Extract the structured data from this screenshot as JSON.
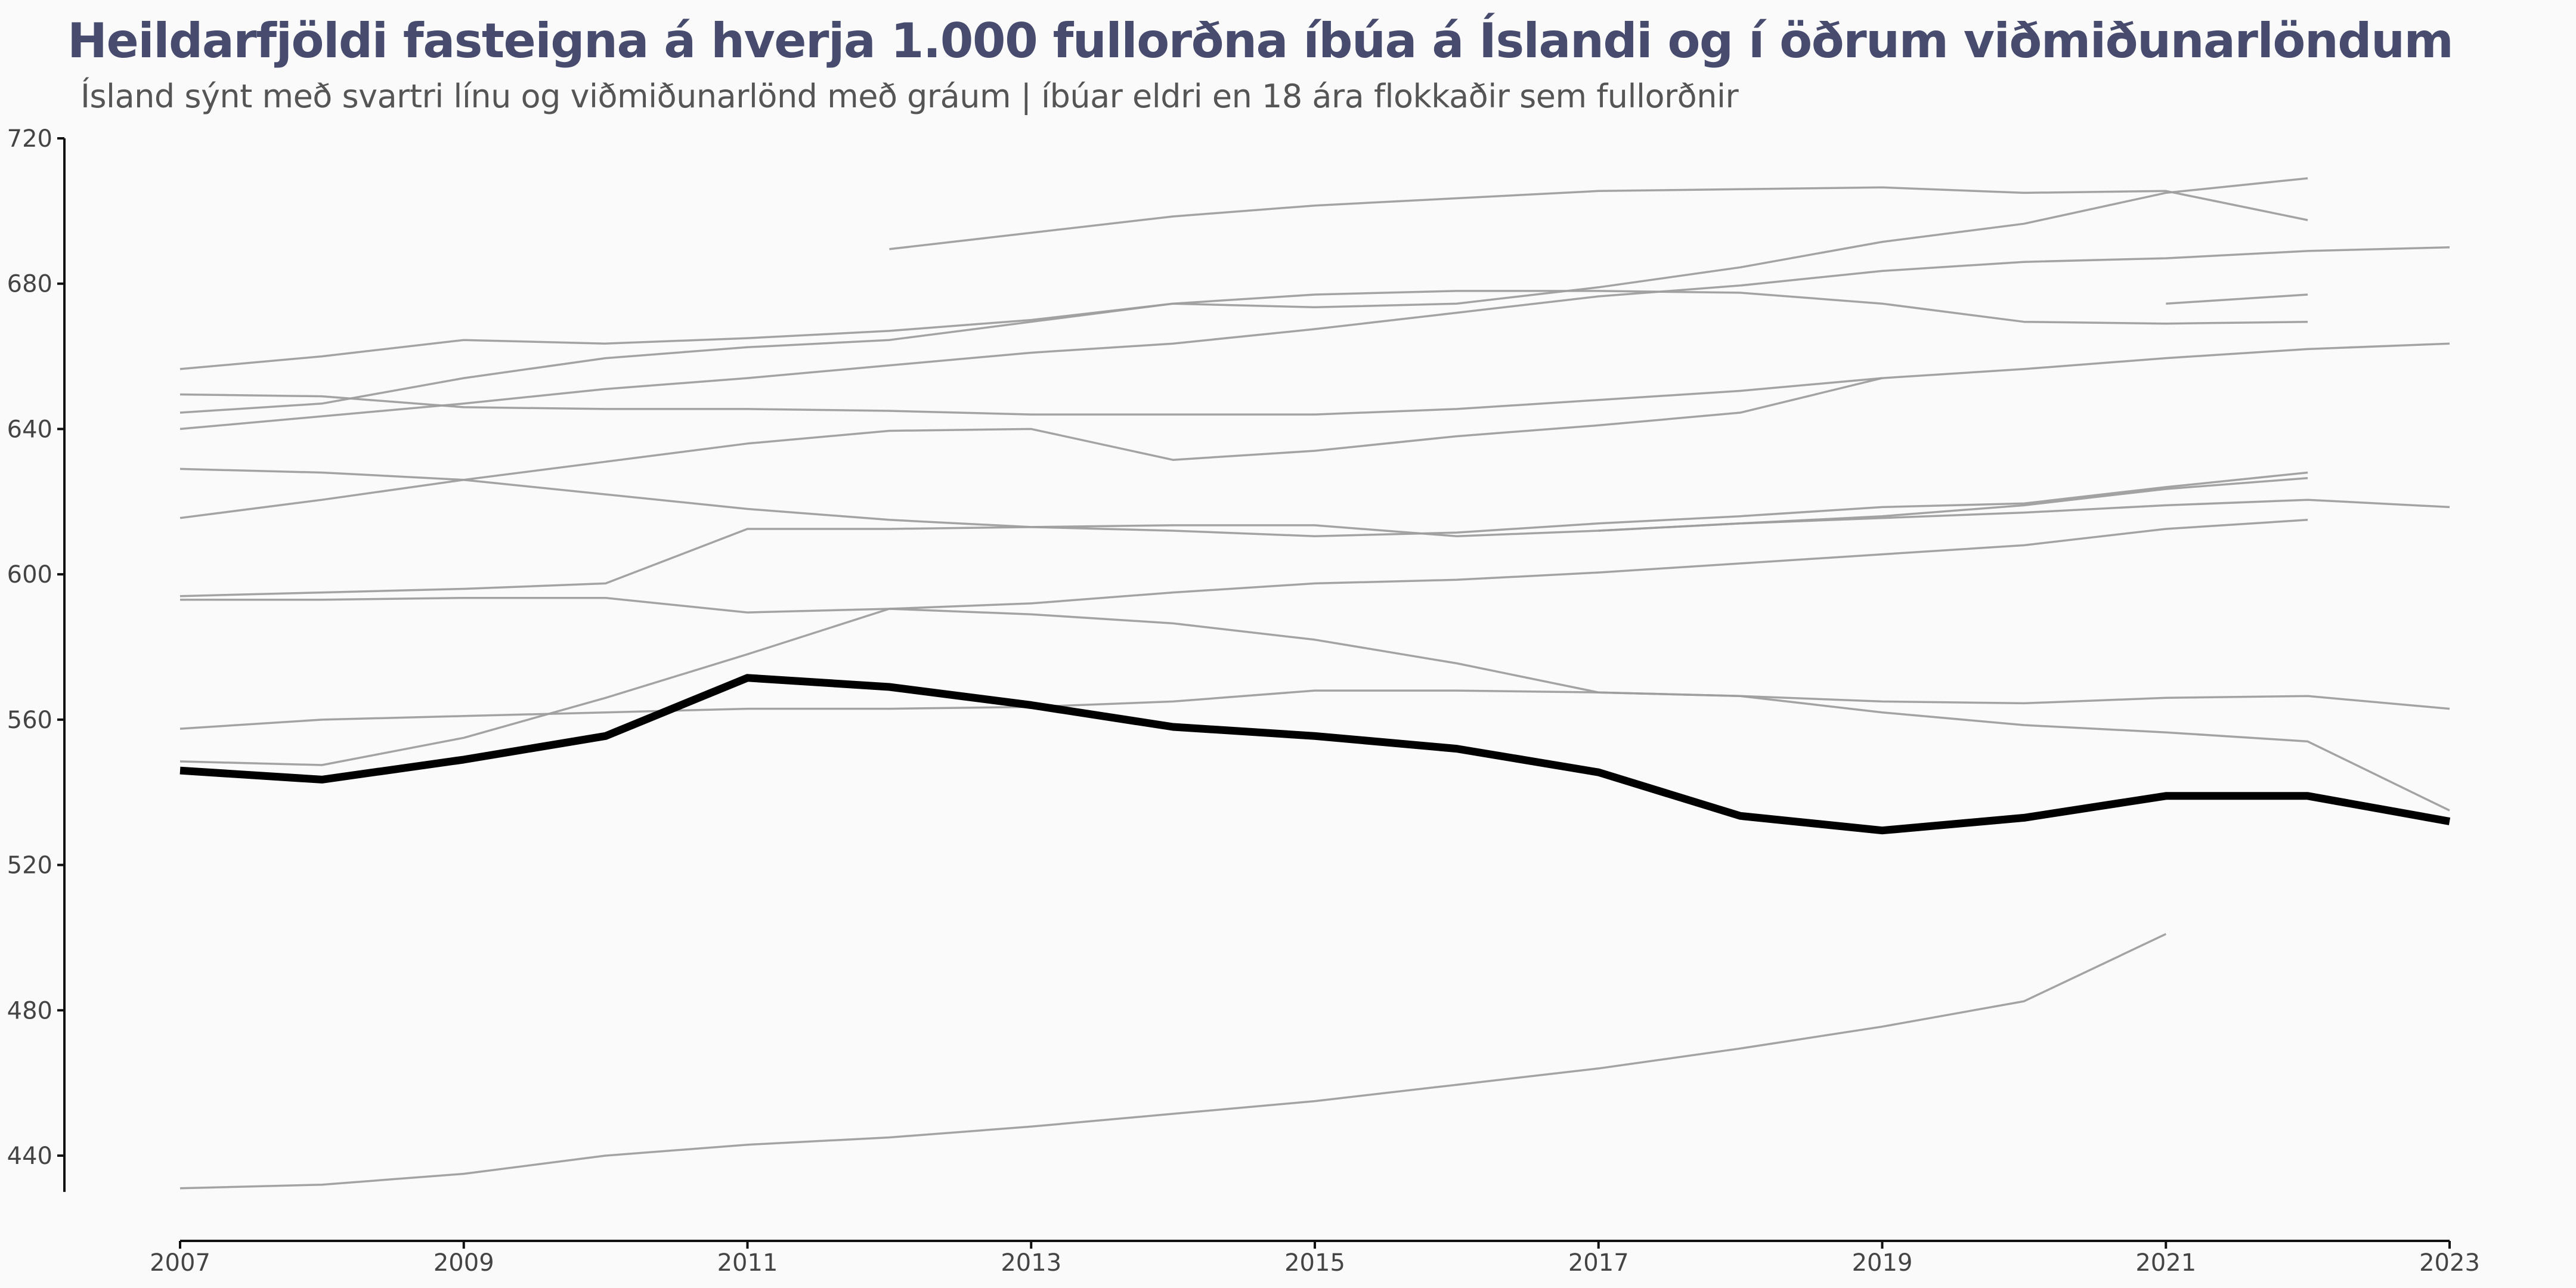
{
  "chart_data": {
    "type": "line",
    "title": "Heildarfjöldi fasteigna á hverja 1.000 fullorðna íbúa á Íslandi og í öðrum viðmiðunarlöndum",
    "subtitle": "Ísland sýnt með svartri línu og viðmiðunarlönd með gráum | íbúar eldri en 18 ára flokkaðir sem fullorðnir",
    "xlabel": "",
    "ylabel": "",
    "xlim": [
      2007,
      2023
    ],
    "ylim": [
      430,
      720
    ],
    "x_ticks": [
      2007,
      2009,
      2011,
      2013,
      2015,
      2017,
      2019,
      2021,
      2023
    ],
    "y_ticks": [
      440,
      480,
      520,
      560,
      600,
      640,
      680,
      720
    ],
    "grid": false,
    "legend": "none",
    "colors": {
      "highlight": "#000000",
      "other": "#9e9e9e",
      "title": "#474c6e"
    },
    "series": [
      {
        "highlight": true,
        "points": [
          [
            2007,
            546
          ],
          [
            2008,
            543.5
          ],
          [
            2009,
            549
          ],
          [
            2010,
            555.5
          ],
          [
            2011,
            571.5
          ],
          [
            2012,
            569
          ],
          [
            2013,
            564
          ],
          [
            2014,
            558
          ],
          [
            2015,
            555.5
          ],
          [
            2016,
            552
          ],
          [
            2017,
            545.5
          ],
          [
            2018,
            533.5
          ],
          [
            2019,
            529.5
          ],
          [
            2020,
            533
          ],
          [
            2021,
            539
          ],
          [
            2022,
            539
          ],
          [
            2023,
            532
          ]
        ]
      },
      {
        "points": [
          [
            2007,
            431
          ],
          [
            2008,
            432
          ],
          [
            2009,
            435
          ],
          [
            2010,
            440
          ],
          [
            2011,
            443
          ],
          [
            2012,
            445
          ],
          [
            2013,
            448
          ],
          [
            2014,
            451.5
          ],
          [
            2015,
            455
          ],
          [
            2016,
            459.5
          ],
          [
            2017,
            464
          ],
          [
            2018,
            469.5
          ],
          [
            2019,
            475.5
          ],
          [
            2020,
            482.5
          ],
          [
            2021,
            501
          ]
        ]
      },
      {
        "points": [
          [
            2007,
            548.5
          ],
          [
            2008,
            547.5
          ],
          [
            2009,
            555
          ],
          [
            2010,
            566
          ],
          [
            2011,
            578
          ],
          [
            2012,
            590.5
          ],
          [
            2013,
            589
          ],
          [
            2014,
            586.5
          ],
          [
            2015,
            582
          ],
          [
            2016,
            575.5
          ],
          [
            2017,
            567.5
          ],
          [
            2018,
            566.5
          ],
          [
            2019,
            562
          ],
          [
            2020,
            558.5
          ],
          [
            2021,
            556.5
          ],
          [
            2022,
            554
          ],
          [
            2023,
            535
          ]
        ]
      },
      {
        "points": [
          [
            2007,
            557.5
          ],
          [
            2008,
            560
          ],
          [
            2009,
            561
          ],
          [
            2010,
            562
          ],
          [
            2011,
            563
          ],
          [
            2012,
            563
          ],
          [
            2013,
            563.5
          ],
          [
            2014,
            565
          ],
          [
            2015,
            568
          ],
          [
            2016,
            568
          ],
          [
            2017,
            567.5
          ],
          [
            2018,
            566.5
          ],
          [
            2019,
            565
          ],
          [
            2020,
            564.5
          ],
          [
            2021,
            566
          ],
          [
            2022,
            566.5
          ],
          [
            2023,
            563
          ]
        ]
      },
      {
        "points": [
          [
            2007,
            593
          ],
          [
            2008,
            593
          ],
          [
            2009,
            593.5
          ],
          [
            2010,
            593.5
          ],
          [
            2011,
            589.5
          ],
          [
            2012,
            590.5
          ],
          [
            2013,
            592
          ],
          [
            2014,
            595
          ],
          [
            2015,
            597.5
          ],
          [
            2016,
            598.5
          ],
          [
            2017,
            600.5
          ],
          [
            2018,
            603
          ],
          [
            2019,
            605.5
          ],
          [
            2020,
            608
          ],
          [
            2021,
            612.5
          ],
          [
            2022,
            615
          ]
        ]
      },
      {
        "points": [
          [
            2007,
            594
          ],
          [
            2008,
            595
          ],
          [
            2009,
            596
          ],
          [
            2010,
            597.5
          ],
          [
            2011,
            612.5
          ],
          [
            2012,
            612.5
          ],
          [
            2013,
            613
          ],
          [
            2014,
            613.5
          ],
          [
            2015,
            613.5
          ],
          [
            2016,
            610.5
          ],
          [
            2017,
            612
          ],
          [
            2018,
            614
          ],
          [
            2019,
            615.5
          ],
          [
            2020,
            617
          ],
          [
            2021,
            619
          ],
          [
            2022,
            620.5
          ],
          [
            2023,
            618.5
          ]
        ]
      },
      {
        "points": [
          [
            2007,
            629
          ],
          [
            2008,
            628
          ],
          [
            2009,
            626
          ],
          [
            2010,
            622
          ],
          [
            2011,
            618
          ],
          [
            2012,
            615
          ],
          [
            2013,
            613
          ],
          [
            2014,
            612
          ],
          [
            2015,
            610.5
          ],
          [
            2016,
            611.5
          ],
          [
            2017,
            614
          ],
          [
            2018,
            616
          ],
          [
            2019,
            618.5
          ],
          [
            2020,
            619.5
          ],
          [
            2021,
            624
          ],
          [
            2022,
            628
          ]
        ]
      },
      {
        "points": [
          [
            2017,
            612
          ],
          [
            2018,
            614
          ],
          [
            2019,
            616
          ],
          [
            2020,
            619
          ],
          [
            2021,
            623.5
          ],
          [
            2022,
            626.5
          ]
        ]
      },
      {
        "points": [
          [
            2007,
            615.5
          ],
          [
            2008,
            620.5
          ],
          [
            2009,
            626
          ],
          [
            2010,
            631
          ],
          [
            2011,
            636
          ],
          [
            2012,
            639.5
          ],
          [
            2013,
            640
          ],
          [
            2014,
            631.5
          ],
          [
            2015,
            634
          ],
          [
            2016,
            638
          ],
          [
            2017,
            641
          ],
          [
            2018,
            644.5
          ],
          [
            2019,
            654
          ]
        ]
      },
      {
        "points": [
          [
            2007,
            649.5
          ],
          [
            2008,
            649
          ],
          [
            2009,
            646
          ],
          [
            2010,
            645.5
          ],
          [
            2011,
            645.5
          ],
          [
            2012,
            645
          ],
          [
            2013,
            644
          ],
          [
            2014,
            644
          ],
          [
            2015,
            644
          ],
          [
            2016,
            645.5
          ],
          [
            2017,
            648
          ],
          [
            2018,
            650.5
          ],
          [
            2019,
            654
          ],
          [
            2020,
            656.5
          ],
          [
            2021,
            659.5
          ],
          [
            2022,
            662
          ],
          [
            2023,
            663.5
          ]
        ]
      },
      {
        "points": [
          [
            2007,
            640
          ],
          [
            2008,
            643.5
          ],
          [
            2009,
            647
          ],
          [
            2010,
            651
          ],
          [
            2011,
            654
          ],
          [
            2012,
            657.5
          ],
          [
            2013,
            661
          ],
          [
            2014,
            663.5
          ],
          [
            2015,
            667.5
          ],
          [
            2016,
            672
          ],
          [
            2017,
            676.5
          ],
          [
            2018,
            679.5
          ],
          [
            2019,
            683.5
          ],
          [
            2020,
            686
          ],
          [
            2021,
            687
          ],
          [
            2022,
            689
          ],
          [
            2023,
            690
          ]
        ]
      },
      {
        "points": [
          [
            2007,
            644.5
          ],
          [
            2008,
            647
          ],
          [
            2009,
            654
          ],
          [
            2010,
            659.5
          ],
          [
            2011,
            662.5
          ],
          [
            2012,
            664.5
          ],
          [
            2013,
            669.5
          ],
          [
            2014,
            674.5
          ],
          [
            2015,
            677
          ],
          [
            2016,
            678
          ],
          [
            2017,
            678
          ],
          [
            2018,
            677.5
          ],
          [
            2019,
            674.5
          ],
          [
            2020,
            669.5
          ],
          [
            2021,
            669
          ],
          [
            2022,
            669.5
          ]
        ]
      },
      {
        "points": [
          [
            2007,
            656.5
          ],
          [
            2008,
            660
          ],
          [
            2009,
            664.5
          ],
          [
            2010,
            663.5
          ],
          [
            2011,
            665
          ],
          [
            2012,
            667
          ],
          [
            2013,
            670
          ],
          [
            2014,
            674.5
          ],
          [
            2015,
            673.5
          ],
          [
            2016,
            674.5
          ],
          [
            2017,
            679
          ],
          [
            2018,
            684.5
          ],
          [
            2019,
            691.5
          ],
          [
            2020,
            696.5
          ],
          [
            2021,
            705
          ],
          [
            2022,
            709
          ]
        ]
      },
      {
        "points": [
          [
            2012,
            689.5
          ],
          [
            2013,
            694
          ],
          [
            2014,
            698.5
          ],
          [
            2015,
            701.5
          ],
          [
            2016,
            703.5
          ],
          [
            2017,
            705.5
          ],
          [
            2018,
            706
          ],
          [
            2019,
            706.5
          ],
          [
            2020,
            705
          ],
          [
            2021,
            705.5
          ],
          [
            2022,
            697.5
          ]
        ]
      },
      {
        "points": [
          [
            2021,
            674.5
          ],
          [
            2022,
            677
          ]
        ]
      }
    ]
  }
}
